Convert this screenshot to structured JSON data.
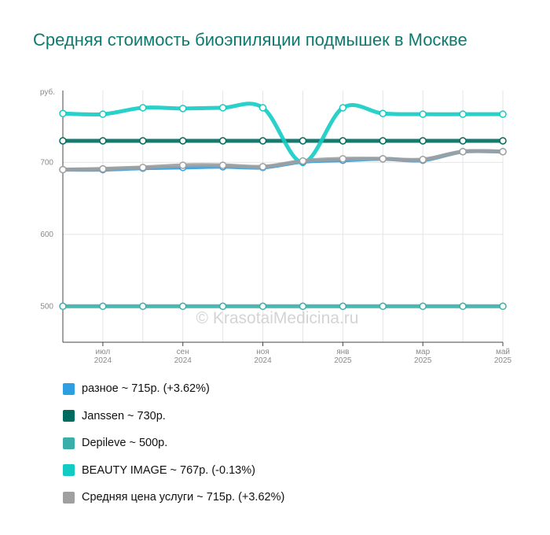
{
  "chart_data": {
    "type": "line",
    "title": "Средняя стоимость биоэпиляции подмышек в Москве",
    "y_unit": "руб.",
    "ylim": [
      450,
      800
    ],
    "y_ticks": [
      500,
      600,
      700
    ],
    "grid": true,
    "watermark": "© KrasotaiMedicina.ru",
    "x": [
      "2024-06",
      "2024-07",
      "2024-08",
      "2024-09",
      "2024-10",
      "2024-11",
      "2024-12",
      "2025-01",
      "2025-02",
      "2025-03",
      "2025-04",
      "2025-05"
    ],
    "x_ticks": [
      {
        "month": "июл",
        "year": "2024",
        "index": 1
      },
      {
        "month": "сен",
        "year": "2024",
        "index": 3
      },
      {
        "month": "ноя",
        "year": "2024",
        "index": 5
      },
      {
        "month": "янв",
        "year": "2025",
        "index": 7
      },
      {
        "month": "мар",
        "year": "2025",
        "index": 9
      },
      {
        "month": "май",
        "year": "2025",
        "index": 11
      }
    ],
    "series": [
      {
        "name": "Depileve",
        "legend": "Depileve ~ 500р.",
        "color": "#3aafa9",
        "values": [
          500,
          500,
          500,
          500,
          500,
          500,
          500,
          500,
          500,
          500,
          500,
          500
        ]
      },
      {
        "name": "Janssen",
        "legend": "Janssen ~ 730р.",
        "color": "#006b5f",
        "values": [
          730,
          730,
          730,
          730,
          730,
          730,
          730,
          730,
          730,
          730,
          730,
          730
        ]
      },
      {
        "name": "BEAUTY IMAGE",
        "legend": "BEAUTY IMAGE ~ 767р. (-0.13%)",
        "color": "#12ccc4",
        "values": [
          768,
          767,
          776,
          775,
          776,
          776,
          700,
          776,
          768,
          767,
          767,
          767
        ]
      },
      {
        "name": "разное",
        "legend": "разное ~ 715р. (+3.62%)",
        "color": "#2d9fe0",
        "values": [
          690,
          690,
          692,
          693,
          694,
          693,
          701,
          703,
          705,
          703,
          715,
          715
        ]
      },
      {
        "name": "Средняя цена услуги",
        "legend": "Средняя цена услуги ~ 715р. (+3.62%)",
        "color": "#a0a0a0",
        "values": [
          690,
          691,
          693,
          696,
          696,
          694,
          702,
          705,
          705,
          704,
          715,
          715
        ]
      }
    ],
    "legend_order": [
      "разное",
      "Janssen",
      "Depileve",
      "BEAUTY IMAGE",
      "Средняя цена услуги"
    ]
  }
}
